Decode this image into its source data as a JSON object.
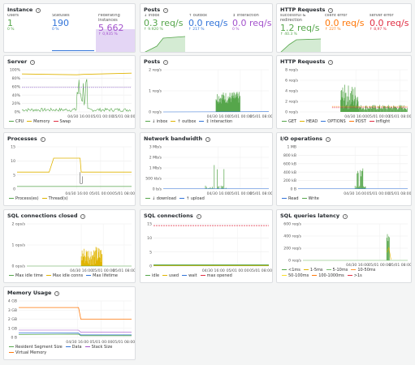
{
  "colors": {
    "green": "#56a64b",
    "yellow": "#e0b400",
    "blue": "#3274d9",
    "purple": "#a352cc",
    "orange": "#ff780a",
    "red": "#e02f44",
    "lightpurple": "#e4d6f5",
    "lightgreen": "#d4ebd3"
  },
  "stat_panels": [
    {
      "title": "Instance",
      "stats": [
        {
          "label": "Users",
          "value": "1",
          "change": "0 %",
          "color": "#56a64b"
        },
        {
          "label": "Statuses",
          "value": "190",
          "change": "0 %",
          "color": "#3274d9"
        },
        {
          "label": "Federating instances",
          "value": "5 662",
          "change": "↑ 0,935 %",
          "color": "#a352cc"
        }
      ]
    },
    {
      "title": "Posts",
      "stats": [
        {
          "label": "↓ inbox",
          "value": "0.3 req/s",
          "change": "↑ 9.920 %",
          "color": "#56a64b"
        },
        {
          "label": "↑ outbox",
          "value": "0.0 req/s",
          "change": "↑ 217 %",
          "color": "#3274d9"
        },
        {
          "label": "↕ interaction",
          "value": "0.0 req/s",
          "change": "0 %",
          "color": "#a352cc"
        }
      ]
    },
    {
      "title": "HTTP Requests",
      "stats": [
        {
          "label": "successful & redirection",
          "value": "1.2 req/s",
          "change": "↑ 40.3 %",
          "color": "#56a64b"
        },
        {
          "label": "client error",
          "value": "0.0 req/s",
          "change": "↑ 227 %",
          "color": "#ff780a"
        },
        {
          "label": "server error",
          "value": "0.0 req/s",
          "change": "↑ 8,97 %",
          "color": "#e02f44"
        }
      ]
    }
  ],
  "charts": [
    {
      "title": "Server",
      "yticks": [
        "100%",
        "80%",
        "60%",
        "40%",
        "20%",
        "0%"
      ],
      "xticks": [
        "04/30 16:00",
        "05/01 00:00",
        "05/01 08:00"
      ],
      "legend": [
        {
          "name": "CPU",
          "color": "#56a64b"
        },
        {
          "name": "Memory",
          "color": "#e0b400"
        },
        {
          "name": "Swap",
          "color": "#e02f44"
        }
      ]
    },
    {
      "title": "Posts",
      "yticks": [
        "2 req/s",
        "1 req/s",
        "0 req/s"
      ],
      "xticks": [
        "04/30 16:00",
        "05/01 00:00",
        "05/01 08:00"
      ],
      "legend": [
        {
          "name": "↓ inbox",
          "color": "#56a64b"
        },
        {
          "name": "↑ outbox",
          "color": "#e0b400"
        },
        {
          "name": "↕ interaction",
          "color": "#3274d9"
        }
      ]
    },
    {
      "title": "HTTP Requests",
      "yticks": [
        "8 req/s",
        "6 req/s",
        "4 req/s",
        "2 req/s",
        "0 req/s"
      ],
      "xticks": [
        "04/30 16:00",
        "05/01 00:00",
        "05/01 08:00"
      ],
      "legend": [
        {
          "name": "GET",
          "color": "#56a64b"
        },
        {
          "name": "HEAD",
          "color": "#e0b400"
        },
        {
          "name": "OPTIONS",
          "color": "#3274d9"
        },
        {
          "name": "POST",
          "color": "#ff780a"
        },
        {
          "name": "inflight",
          "color": "#e02f44"
        }
      ]
    },
    {
      "title": "Processes",
      "yticks": [
        "15",
        "10",
        "5",
        "0"
      ],
      "xticks": [
        "04/30 16:00",
        "05/01 00:00",
        "05/01 08:00"
      ],
      "legend": [
        {
          "name": "Process(es)",
          "color": "#56a64b"
        },
        {
          "name": "Thread(s)",
          "color": "#e0b400"
        }
      ]
    },
    {
      "title": "Network bandwidth",
      "yticks": [
        "3 Mb/s",
        "2 Mb/s",
        "1 Mb/s",
        "500 kb/s",
        "0 b/s"
      ],
      "xticks": [
        "04/30 16:00",
        "05/01 00:00",
        "05/01 08:00"
      ],
      "legend": [
        {
          "name": "↓ download",
          "color": "#56a64b"
        },
        {
          "name": "↑ upload",
          "color": "#3274d9"
        }
      ]
    },
    {
      "title": "I/O operations",
      "yticks": [
        "1 MB",
        "800 kB",
        "600 kB",
        "400 kB",
        "200 kB",
        "0 B"
      ],
      "xticks": [
        "04/30 16:00",
        "05/01 00:00",
        "05/01 08:00"
      ],
      "legend": [
        {
          "name": "Read",
          "color": "#3274d9"
        },
        {
          "name": "Write",
          "color": "#56a64b"
        }
      ]
    },
    {
      "title": "SQL connections closed",
      "yticks": [
        "2 ops/s",
        "1 ops/s",
        "0 ops/s"
      ],
      "xticks": [
        "04/30 16:00",
        "05/01 00:00",
        "05/01 08:00"
      ],
      "legend": [
        {
          "name": "Max idle time",
          "color": "#56a64b"
        },
        {
          "name": "Max idle conns",
          "color": "#e0b400"
        },
        {
          "name": "Max lifetime",
          "color": "#3274d9"
        }
      ]
    },
    {
      "title": "SQL connections",
      "yticks": [
        "15",
        "10",
        "5",
        "0"
      ],
      "xticks": [
        "04/30 16:00",
        "05/01 00:00",
        "05/01 08:00"
      ],
      "legend": [
        {
          "name": "idle",
          "color": "#56a64b"
        },
        {
          "name": "used",
          "color": "#e0b400"
        },
        {
          "name": "wait",
          "color": "#3274d9"
        },
        {
          "name": "max opened",
          "color": "#e02f44"
        }
      ]
    },
    {
      "title": "SQL queries latency",
      "yticks": [
        "600 req/s",
        "400 req/s",
        "200 req/s",
        "0 req/s"
      ],
      "xticks": [
        "04/30 16:00",
        "05/01 00:00",
        "05/01 08:00"
      ],
      "legend": [
        {
          "name": "<1ms",
          "color": "#56a64b"
        },
        {
          "name": "1-5ms",
          "color": "#e0b400"
        },
        {
          "name": "5-10ms",
          "color": "#73bf69"
        },
        {
          "name": "10-50ms",
          "color": "#ff9830"
        },
        {
          "name": "50-100ms",
          "color": "#fade2a"
        },
        {
          "name": "100-1000ms",
          "color": "#ff780a"
        },
        {
          "name": ">1s",
          "color": "#e02f44"
        }
      ]
    },
    {
      "title": "Memory Usage",
      "yticks": [
        "4 GB",
        "3 GB",
        "2 GB",
        "1 GB",
        "0 B"
      ],
      "xticks": [
        "04/30 16:00",
        "05/01 00:00",
        "05/01 08:00"
      ],
      "legend": [
        {
          "name": "Resident Segment Size",
          "color": "#56a64b"
        },
        {
          "name": "Data",
          "color": "#3274d9"
        },
        {
          "name": "Stack Size",
          "color": "#a352cc"
        },
        {
          "name": "Virtual Memory",
          "color": "#ff780a"
        }
      ]
    }
  ]
}
